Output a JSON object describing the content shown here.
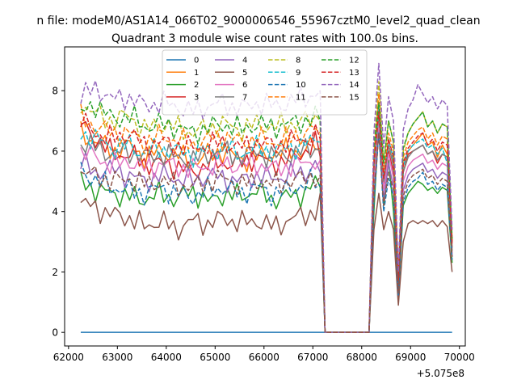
{
  "figure": {
    "suptitle": "n file: modeM0/AS1A14_066T02_9000006546_55967cztM0_level2_quad_clean",
    "offset_label": "+5.075e8"
  },
  "chart_data": {
    "type": "line",
    "title": "Quadrant 3 module wise count rates with 100.0s bins.",
    "xlabel": "",
    "ylabel": "",
    "xlim": [
      61920,
      70120
    ],
    "ylim": [
      -0.45,
      9.45
    ],
    "x_ticks": [
      62000,
      63000,
      64000,
      65000,
      66000,
      67000,
      68000,
      69000,
      70000
    ],
    "y_ticks": [
      0,
      2,
      4,
      6,
      8
    ],
    "x_range": [
      62250,
      69850
    ],
    "x_step": 100,
    "gap": [
      67250,
      68150
    ],
    "grid": false,
    "legend_position": "top-center",
    "legend_columns": 4,
    "series": [
      {
        "name": "0",
        "color": "#1f77b4",
        "dash": "solid",
        "level": 0.0,
        "seg": [
          0,
          0,
          0,
          0,
          0,
          0,
          0,
          0,
          0,
          0,
          0,
          0,
          0,
          0,
          0,
          0
        ],
        "pre": 0.0,
        "post": [
          0,
          0,
          0,
          0,
          0,
          0,
          0,
          0,
          0,
          0,
          0,
          0,
          0,
          0,
          0,
          0,
          0
        ]
      },
      {
        "name": "1",
        "color": "#ff7f0e",
        "dash": "solid",
        "level": 6.2,
        "seg": [
          6.6,
          6.3,
          6.0,
          6.2,
          5.8,
          6.0,
          5.9,
          5.6,
          5.9,
          6.0,
          5.7,
          5.8,
          5.9,
          6.0,
          6.0,
          6.3
        ],
        "pre": 6.1,
        "post": [
          5.3,
          7.5,
          5.0,
          6.2,
          5.6,
          1.8,
          5.5,
          6.0,
          6.2,
          6.4,
          6.6,
          6.2,
          6.3,
          5.8,
          6.2,
          5.9,
          3.0
        ]
      },
      {
        "name": "2",
        "color": "#2ca02c",
        "dash": "solid",
        "level": 4.6,
        "seg": [
          5.0,
          4.7,
          4.6,
          4.5,
          4.4,
          4.6,
          4.4,
          4.7,
          4.3,
          4.6,
          4.5,
          4.7,
          4.4,
          4.5,
          4.6,
          5.1
        ],
        "pre": 4.8,
        "post": [
          4.0,
          7.0,
          4.2,
          5.7,
          4.0,
          1.1,
          4.2,
          4.6,
          4.8,
          5.0,
          4.9,
          4.7,
          4.8,
          4.6,
          4.8,
          4.7,
          2.3
        ]
      },
      {
        "name": "3",
        "color": "#d62728",
        "dash": "solid",
        "level": 6.0,
        "seg": [
          6.9,
          6.4,
          5.9,
          5.9,
          5.6,
          5.6,
          5.5,
          5.3,
          5.6,
          5.6,
          5.6,
          5.8,
          5.6,
          5.7,
          6.0,
          6.3
        ],
        "pre": 5.8,
        "post": [
          5.0,
          7.0,
          4.8,
          6.0,
          5.3,
          1.2,
          5.3,
          5.9,
          6.0,
          6.1,
          6.2,
          5.9,
          6.0,
          5.6,
          5.9,
          5.8,
          2.8
        ]
      },
      {
        "name": "4",
        "color": "#9467bd",
        "dash": "solid",
        "level": 5.4,
        "seg": [
          5.6,
          5.3,
          5.4,
          5.2,
          5.0,
          5.2,
          5.1,
          5.0,
          5.2,
          5.1,
          5.0,
          5.2,
          5.1,
          5.2,
          5.3,
          5.6
        ],
        "pre": 5.3,
        "post": [
          4.6,
          6.9,
          4.4,
          5.6,
          4.8,
          1.3,
          4.7,
          5.2,
          5.4,
          5.5,
          5.6,
          5.3,
          5.4,
          5.1,
          5.3,
          5.2,
          2.5
        ]
      },
      {
        "name": "5",
        "color": "#8c564b",
        "dash": "solid",
        "level": 3.7,
        "seg": [
          4.3,
          4.1,
          3.9,
          3.8,
          3.5,
          3.7,
          3.4,
          3.7,
          3.6,
          3.8,
          3.6,
          3.7,
          3.5,
          3.7,
          3.9,
          4.0
        ],
        "pre": 4.6,
        "post": [
          3.4,
          4.6,
          3.4,
          4.0,
          3.4,
          0.9,
          3.0,
          3.6,
          3.7,
          3.6,
          3.7,
          3.6,
          3.7,
          3.5,
          3.7,
          3.5,
          2.0
        ]
      },
      {
        "name": "6",
        "color": "#e377c2",
        "dash": "solid",
        "level": 5.6,
        "seg": [
          6.0,
          5.8,
          5.5,
          5.7,
          5.4,
          5.6,
          5.5,
          5.4,
          5.5,
          5.6,
          5.5,
          5.6,
          5.4,
          5.5,
          5.6,
          5.8
        ],
        "pre": 5.7,
        "post": [
          5.0,
          7.0,
          4.7,
          5.9,
          5.1,
          1.4,
          5.0,
          5.5,
          5.7,
          5.8,
          5.9,
          5.6,
          5.7,
          5.4,
          5.6,
          5.5,
          2.6
        ]
      },
      {
        "name": "7",
        "color": "#7f7f7f",
        "dash": "solid",
        "level": 6.0,
        "seg": [
          6.3,
          6.1,
          5.9,
          6.0,
          5.8,
          5.9,
          5.8,
          5.7,
          5.9,
          6.0,
          5.8,
          6.0,
          5.8,
          5.9,
          6.0,
          6.2
        ],
        "pre": 6.0,
        "post": [
          5.4,
          7.2,
          5.0,
          6.2,
          5.5,
          1.6,
          5.3,
          5.8,
          6.0,
          6.1,
          6.2,
          5.9,
          6.0,
          5.7,
          5.9,
          5.8,
          2.7
        ]
      },
      {
        "name": "8",
        "color": "#bcbd22",
        "dash": "dashed",
        "level": 6.9,
        "seg": [
          7.6,
          7.2,
          7.0,
          7.2,
          6.7,
          6.9,
          6.8,
          6.6,
          6.8,
          6.9,
          6.7,
          6.9,
          6.8,
          6.9,
          7.0,
          7.1
        ],
        "pre": 7.0,
        "post": [
          6.0,
          8.3,
          5.6,
          7.0,
          6.3,
          1.9,
          6.0,
          6.6,
          6.9,
          7.1,
          7.3,
          6.8,
          7.0,
          6.6,
          6.9,
          6.8,
          3.1
        ]
      },
      {
        "name": "9",
        "color": "#17becf",
        "dash": "dashed",
        "level": 6.2,
        "seg": [
          6.6,
          6.4,
          6.1,
          6.2,
          5.9,
          6.1,
          6.0,
          5.9,
          6.0,
          6.1,
          5.9,
          6.1,
          6.0,
          6.1,
          6.2,
          6.4
        ],
        "pre": 6.3,
        "post": [
          5.6,
          7.6,
          5.2,
          6.4,
          5.7,
          1.7,
          5.5,
          6.0,
          6.2,
          6.3,
          6.4,
          6.1,
          6.2,
          5.9,
          6.1,
          5.6,
          3.0
        ]
      },
      {
        "name": "10",
        "color": "#1f77b4",
        "dash": "dashed",
        "level": 4.8,
        "seg": [
          5.4,
          5.0,
          4.8,
          4.7,
          4.6,
          4.8,
          4.6,
          4.5,
          4.7,
          4.8,
          4.6,
          4.8,
          4.6,
          4.7,
          4.9,
          5.0
        ],
        "pre": 4.9,
        "post": [
          4.3,
          6.6,
          4.0,
          5.1,
          4.5,
          1.2,
          4.3,
          4.8,
          5.0,
          5.1,
          5.3,
          4.9,
          5.0,
          4.7,
          4.9,
          4.8,
          2.4
        ]
      },
      {
        "name": "11",
        "color": "#ff7f0e",
        "dash": "dashed",
        "level": 6.9,
        "seg": [
          7.1,
          6.8,
          6.6,
          6.6,
          6.3,
          6.5,
          6.4,
          6.2,
          6.4,
          6.5,
          6.3,
          6.4,
          6.3,
          6.4,
          6.6,
          6.8
        ],
        "pre": 6.6,
        "post": [
          5.8,
          7.9,
          5.3,
          6.6,
          6.0,
          1.8,
          5.8,
          6.3,
          6.5,
          6.7,
          6.8,
          6.4,
          6.6,
          6.2,
          6.5,
          6.4,
          3.0
        ]
      },
      {
        "name": "12",
        "color": "#2ca02c",
        "dash": "dashed",
        "level": 6.9,
        "seg": [
          7.2,
          7.6,
          7.0,
          7.2,
          6.8,
          6.9,
          6.8,
          6.6,
          6.8,
          6.9,
          6.7,
          6.9,
          6.8,
          6.9,
          7.0,
          7.2
        ],
        "pre": 7.0,
        "post": [
          6.1,
          7.6,
          5.6,
          7.0,
          6.3,
          1.9,
          6.1,
          6.6,
          6.9,
          7.1,
          7.3,
          6.8,
          7.0,
          6.6,
          6.9,
          6.8,
          3.1
        ]
      },
      {
        "name": "13",
        "color": "#d62728",
        "dash": "dashed",
        "level": 6.3,
        "seg": [
          7.0,
          6.6,
          6.4,
          6.6,
          6.2,
          6.3,
          6.2,
          6.1,
          6.2,
          6.3,
          6.1,
          6.3,
          6.2,
          6.3,
          6.4,
          6.6
        ],
        "pre": 6.4,
        "post": [
          5.6,
          7.3,
          5.1,
          6.4,
          5.8,
          1.7,
          5.6,
          6.1,
          6.3,
          6.5,
          6.6,
          6.2,
          6.4,
          6.0,
          6.3,
          6.2,
          2.9
        ]
      },
      {
        "name": "14",
        "color": "#9467bd",
        "dash": "dashed",
        "level": 7.6,
        "seg": [
          7.8,
          8.1,
          7.7,
          7.8,
          7.5,
          7.6,
          7.5,
          7.3,
          7.5,
          7.6,
          7.4,
          7.6,
          7.5,
          7.6,
          7.8,
          7.9
        ],
        "pre": 8.0,
        "post": [
          6.6,
          8.9,
          6.1,
          7.8,
          7.0,
          2.0,
          6.7,
          7.4,
          7.7,
          8.2,
          7.9,
          7.6,
          7.8,
          7.4,
          7.7,
          7.5,
          3.4
        ]
      },
      {
        "name": "15",
        "color": "#8c564b",
        "dash": "dashed",
        "level": 5.1,
        "seg": [
          5.3,
          5.2,
          5.0,
          5.1,
          4.9,
          5.0,
          4.9,
          4.8,
          5.0,
          5.1,
          4.9,
          5.0,
          4.9,
          5.0,
          5.1,
          5.3
        ],
        "pre": 5.2,
        "post": [
          4.6,
          6.6,
          4.2,
          5.3,
          4.7,
          1.3,
          4.5,
          5.0,
          5.2,
          5.3,
          5.4,
          5.1,
          5.2,
          4.9,
          5.1,
          5.0,
          2.5
        ]
      }
    ]
  }
}
